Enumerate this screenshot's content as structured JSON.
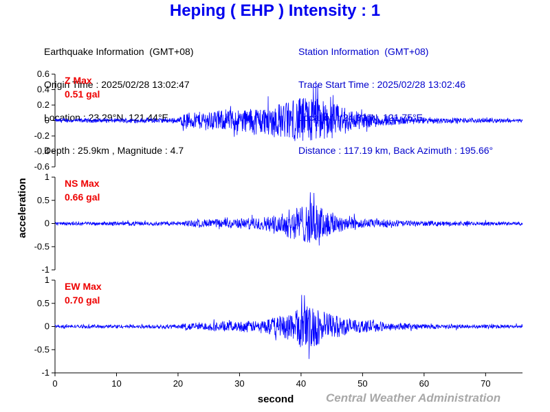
{
  "title": "Heping ( EHP ) Intensity : 1",
  "earthquake": {
    "heading": "Earthquake Information  (GMT+08)",
    "origin_time": "Origin Time : 2025/02/28 13:02:47",
    "location": "Location : 23.29°N, 121.44°E",
    "depth_mag": "Depth : 25.9km , Magnitude : 4.7"
  },
  "station": {
    "heading": "Station Information  (GMT+08)",
    "trace_start": "Trace Start Time : 2025/02/28 13:02:46",
    "location": "Location : 24.31°N, 121.75°E",
    "distance": "Distance : 117.19 km, Back Azimuth : 195.66°"
  },
  "credit": "Central Weather Administration",
  "colors": {
    "trace": "#0000ff",
    "title": "#0000ee",
    "max_label": "#ee0000",
    "credit": "#a8a8a8"
  },
  "chart_data": {
    "type": "line",
    "xlabel": "second",
    "ylabel": "acceleration",
    "xlim": [
      0,
      76
    ],
    "x_ticks": [
      "0",
      "10",
      "20",
      "30",
      "40",
      "50",
      "60",
      "70"
    ],
    "x_tick_values": [
      0,
      10,
      20,
      30,
      40,
      50,
      60,
      70
    ],
    "panels": [
      {
        "name": "Z Max",
        "max_label": "0.51 gal",
        "ylim": [
          -0.6,
          0.6
        ],
        "y_ticks": [
          "0.6",
          "0.4",
          "0.2",
          "0",
          "-0.2",
          "-0.4",
          "-0.6"
        ],
        "y_tick_values": [
          0.6,
          0.4,
          0.2,
          0,
          -0.2,
          -0.4,
          -0.6
        ],
        "noise": 0.02,
        "envelope": [
          [
            0,
            0.02
          ],
          [
            20,
            0.03
          ],
          [
            21,
            0.1
          ],
          [
            25,
            0.12
          ],
          [
            30,
            0.14
          ],
          [
            35,
            0.2
          ],
          [
            38,
            0.25
          ],
          [
            40,
            0.3
          ],
          [
            42,
            0.32
          ],
          [
            44,
            0.25
          ],
          [
            47,
            0.18
          ],
          [
            50,
            0.1
          ],
          [
            55,
            0.06
          ],
          [
            60,
            0.04
          ],
          [
            65,
            0.03
          ],
          [
            76,
            0.02
          ]
        ],
        "peak": {
          "x": 42.4,
          "y": 0.51
        }
      },
      {
        "name": "NS Max",
        "max_label": "0.66 gal",
        "ylim": [
          -1,
          1
        ],
        "y_ticks": [
          "1",
          "0.5",
          "0",
          "-0.5",
          "-1"
        ],
        "y_tick_values": [
          1,
          0.5,
          0,
          -0.5,
          -1
        ],
        "noise": 0.03,
        "envelope": [
          [
            0,
            0.03
          ],
          [
            20,
            0.04
          ],
          [
            22,
            0.07
          ],
          [
            28,
            0.1
          ],
          [
            33,
            0.12
          ],
          [
            36,
            0.18
          ],
          [
            38,
            0.3
          ],
          [
            40,
            0.4
          ],
          [
            42,
            0.45
          ],
          [
            44,
            0.3
          ],
          [
            47,
            0.18
          ],
          [
            50,
            0.1
          ],
          [
            55,
            0.07
          ],
          [
            60,
            0.05
          ],
          [
            65,
            0.04
          ],
          [
            76,
            0.03
          ]
        ],
        "peak": {
          "x": 42.1,
          "y": 0.66
        }
      },
      {
        "name": "EW Max",
        "max_label": "0.70 gal",
        "ylim": [
          -1,
          1
        ],
        "y_ticks": [
          "1",
          "0.5",
          "0",
          "-0.5",
          "-1"
        ],
        "y_tick_values": [
          1,
          0.5,
          0,
          -0.5,
          -1
        ],
        "noise": 0.03,
        "envelope": [
          [
            0,
            0.03
          ],
          [
            20,
            0.04
          ],
          [
            22,
            0.08
          ],
          [
            28,
            0.1
          ],
          [
            33,
            0.12
          ],
          [
            36,
            0.2
          ],
          [
            38,
            0.3
          ],
          [
            40,
            0.45
          ],
          [
            42,
            0.48
          ],
          [
            44,
            0.3
          ],
          [
            47,
            0.2
          ],
          [
            50,
            0.12
          ],
          [
            55,
            0.08
          ],
          [
            60,
            0.05
          ],
          [
            65,
            0.04
          ],
          [
            76,
            0.03
          ]
        ],
        "peak": {
          "x": 41.3,
          "y": -0.7
        }
      }
    ]
  }
}
